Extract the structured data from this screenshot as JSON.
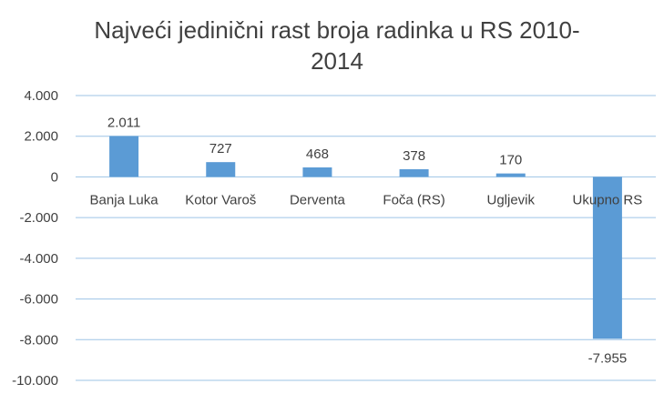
{
  "chart_data": {
    "type": "bar",
    "title": "Najveći jedinični rast broja radinka u RS 2010-\n2014",
    "categories": [
      "Banja Luka",
      "Kotor Varoš",
      "Derventa",
      "Foča (RS)",
      "Ugljevik",
      "Ukupno RS"
    ],
    "values": [
      2011,
      727,
      468,
      378,
      170,
      -7955
    ],
    "data_labels": [
      "2.011",
      "727",
      "468",
      "378",
      "170",
      "-7.955"
    ],
    "y_ticks": [
      4000,
      2000,
      0,
      -2000,
      -4000,
      -6000,
      -8000,
      -10000
    ],
    "y_tick_labels": [
      "4.000",
      "2.000",
      "0",
      "-2.000",
      "-4.000",
      "-6.000",
      "-8.000",
      "-10.000"
    ],
    "ylim": [
      -10000,
      4000
    ],
    "grid": true,
    "legend": "none",
    "bar_color": "#5B9BD5",
    "grid_color": "#9DC3E6"
  }
}
